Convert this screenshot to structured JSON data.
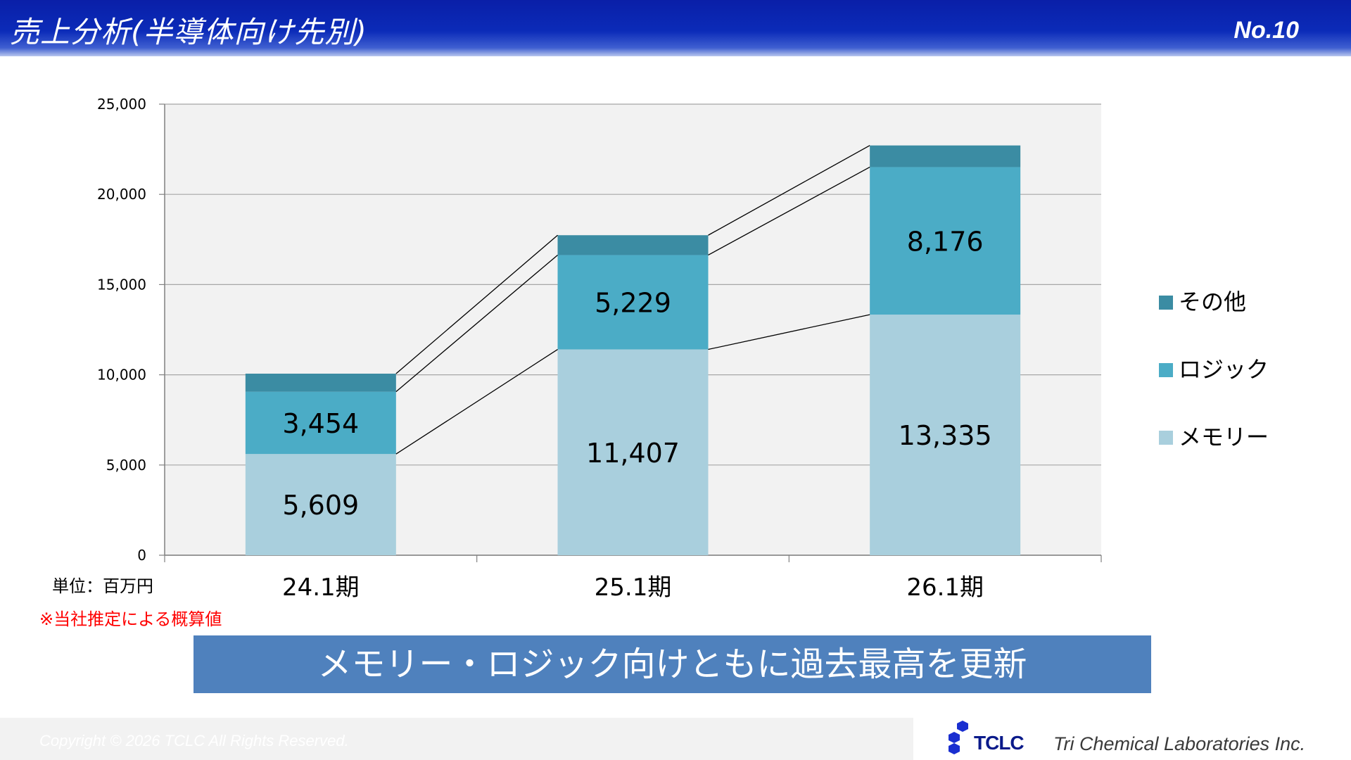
{
  "header": {
    "title": "売上分析(半導体向け先別)",
    "page_no": "No.10"
  },
  "chart_data": {
    "type": "bar",
    "stacked": true,
    "categories": [
      "24.1期",
      "25.1期",
      "26.1期"
    ],
    "series": [
      {
        "name": "メモリー",
        "values": [
          5609,
          11407,
          13335
        ],
        "color": "#a9cfdd",
        "show_labels": true
      },
      {
        "name": "ロジック",
        "values": [
          3454,
          5229,
          8176
        ],
        "color": "#4bacc6",
        "show_labels": true
      },
      {
        "name": "その他",
        "values": [
          1000,
          1100,
          1200
        ],
        "color": "#3b8ca3",
        "show_labels": false
      }
    ],
    "yticks": [
      "0",
      "5,000",
      "10,000",
      "15,000",
      "20,000",
      "25,000"
    ],
    "ylim": [
      0,
      25000
    ],
    "grid": true,
    "legend_position": "right",
    "connector_lines": true
  },
  "unit_label": "単位：百万円",
  "note": "※当社推定による概算値",
  "banner": "メモリー・ロジック向けともに過去最高を更新",
  "footer": {
    "copyright": "Copyright © 2026 TCLC All Rights Reserved.",
    "logo_text": "TCLC",
    "company": "Tri Chemical Laboratories Inc."
  }
}
